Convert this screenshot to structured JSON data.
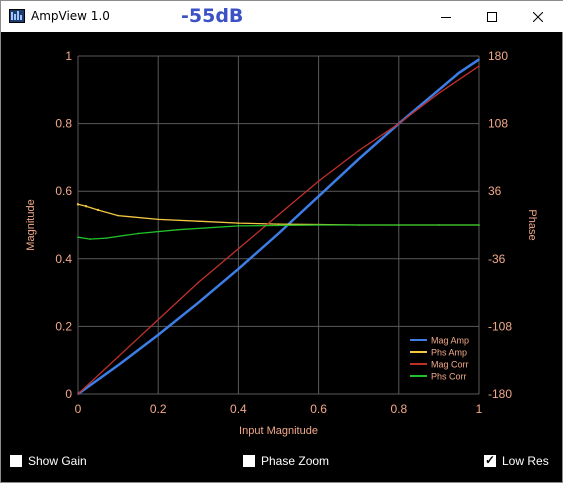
{
  "window": {
    "title": "AmpView 1.0",
    "db_readout": "-55dB"
  },
  "controls": {
    "show_gain": {
      "label": "Show Gain",
      "checked": false
    },
    "phase_zoom": {
      "label": "Phase Zoom",
      "checked": false
    },
    "low_res": {
      "label": "Low Res",
      "checked": true,
      "tick": "✓"
    }
  },
  "chart_data": {
    "type": "line",
    "xlabel": "Input Magnitude",
    "ylabel": "Magnitude",
    "y2label": "Phase",
    "xlim": [
      0,
      1
    ],
    "ylim": [
      0,
      1
    ],
    "y2lim": [
      -180,
      180
    ],
    "x_ticks": [
      "0",
      "0.2",
      "0.4",
      "0.6",
      "0.8",
      "1"
    ],
    "y_ticks": [
      "0",
      "0.2",
      "0.4",
      "0.6",
      "0.8",
      "1"
    ],
    "y2_ticks": [
      "-180",
      "-108",
      "-36",
      "36",
      "108",
      "180"
    ],
    "grid": true,
    "legend_position": "bottom-right",
    "colors": {
      "background": "#000000",
      "grid": "#5a5a5a",
      "axis_text": "#f2a98a"
    },
    "series": [
      {
        "name": "Mag Amp",
        "color": "#3d7ee6",
        "axis": "left",
        "x": [
          0,
          0.1,
          0.2,
          0.3,
          0.4,
          0.5,
          0.6,
          0.7,
          0.8,
          0.9,
          0.95,
          1.0
        ],
        "y": [
          0,
          0.085,
          0.175,
          0.27,
          0.37,
          0.475,
          0.585,
          0.695,
          0.8,
          0.9,
          0.95,
          0.99
        ]
      },
      {
        "name": "Phs Amp",
        "color": "#f5c842",
        "axis": "right",
        "x": [
          0,
          0.02,
          0.05,
          0.1,
          0.2,
          0.3,
          0.4,
          0.5,
          0.6,
          0.7,
          0.8,
          0.9,
          1.0
        ],
        "y": [
          22,
          20,
          16,
          10,
          6,
          4,
          2,
          1,
          0.5,
          0,
          0,
          0,
          0
        ]
      },
      {
        "name": "Mag Corr",
        "color": "#c0302a",
        "axis": "left",
        "x": [
          0,
          0.1,
          0.2,
          0.3,
          0.4,
          0.5,
          0.6,
          0.7,
          0.8,
          0.9,
          1.0
        ],
        "y": [
          0,
          0.11,
          0.22,
          0.33,
          0.43,
          0.53,
          0.63,
          0.72,
          0.8,
          0.89,
          0.97
        ]
      },
      {
        "name": "Phs Corr",
        "color": "#22c22a",
        "axis": "right",
        "x": [
          0,
          0.03,
          0.07,
          0.15,
          0.25,
          0.4,
          0.6,
          0.8,
          1.0
        ],
        "y": [
          -13,
          -15,
          -14,
          -9,
          -5,
          -1,
          0,
          0,
          0
        ]
      }
    ]
  }
}
